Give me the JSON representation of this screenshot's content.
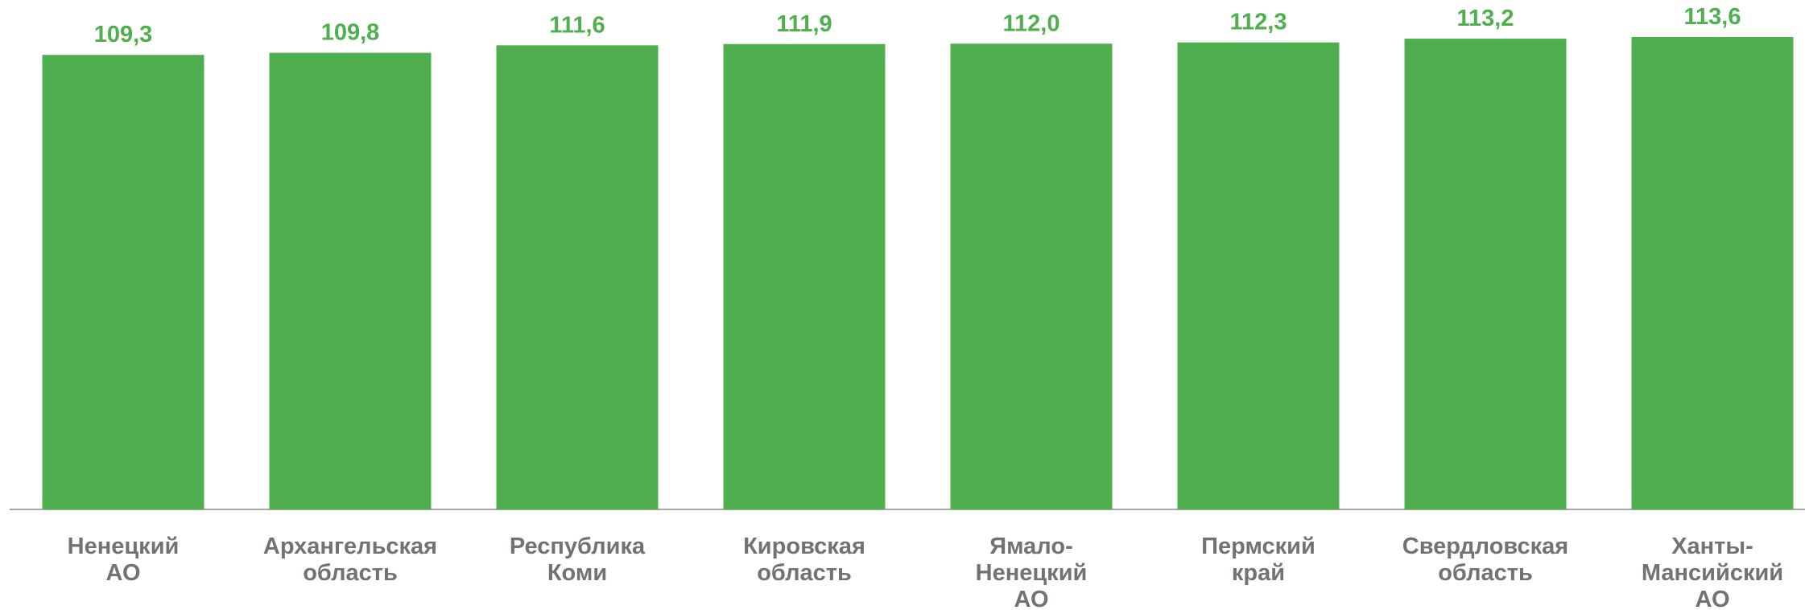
{
  "chart_data": {
    "type": "bar",
    "categories": [
      [
        "Ненецкий",
        "АО"
      ],
      [
        "Архангельская",
        "область"
      ],
      [
        "Республика",
        "Коми"
      ],
      [
        "Кировская",
        "область"
      ],
      [
        "Ямало-",
        "Ненецкий",
        "АО"
      ],
      [
        "Пермский",
        "край"
      ],
      [
        "Свердловская",
        "область"
      ],
      [
        "Ханты-",
        "Мансийский",
        "АО"
      ]
    ],
    "values": [
      109.3,
      109.8,
      111.6,
      111.9,
      112.0,
      112.3,
      113.2,
      113.6
    ],
    "value_labels": [
      "109,3",
      "109,8",
      "111,6",
      "111,9",
      "112,0",
      "112,3",
      "113,2",
      "113,6"
    ],
    "title": "",
    "xlabel": "",
    "ylabel": "",
    "ylim": [
      0,
      122.5
    ],
    "grid": false,
    "legend": "none",
    "colors": {
      "bar": "#4FAF4F",
      "value_label": "#4FAF4F",
      "category_label": "#767171",
      "axis": "#A6A6A6"
    }
  }
}
